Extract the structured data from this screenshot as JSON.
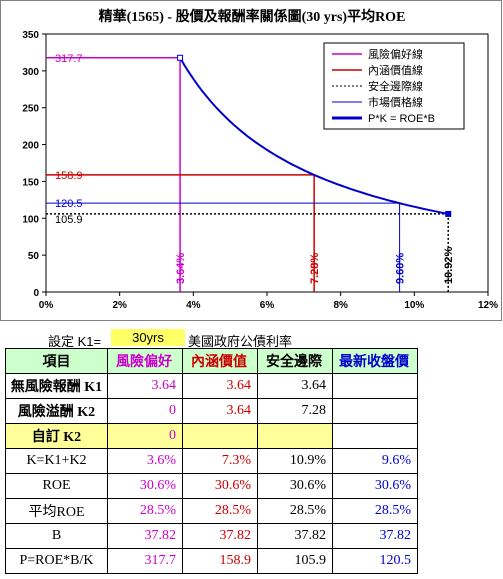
{
  "chart_data": {
    "type": "line",
    "title": "精華(1565) - 股價及報酬率關係圖(30 yrs)平均ROE",
    "xlim": [
      0,
      12
    ],
    "ylim": [
      0,
      350
    ],
    "x_ticks": [
      "0%",
      "2%",
      "4%",
      "6%",
      "8%",
      "10%",
      "12%"
    ],
    "y_ticks": [
      "0",
      "50",
      "100",
      "150",
      "200",
      "250",
      "300",
      "350"
    ],
    "legend_position": "top-right",
    "legend": [
      "風險偏好線",
      "內涵價值線",
      "安全邊際線",
      "市場價格線",
      "P*K = ROE*B"
    ],
    "series": [
      {
        "name": "風險偏好線",
        "color": "#cc00cc",
        "k": 3.64,
        "price": 317.7,
        "k_label": "3.64%",
        "price_label": "317.7"
      },
      {
        "name": "內涵價值線",
        "color": "#cc0000",
        "k": 7.28,
        "price": 158.9,
        "k_label": "7.28%",
        "price_label": "158.9"
      },
      {
        "name": "安全邊際線",
        "color": "#000000",
        "k": 10.92,
        "price": 105.9,
        "k_label": "10.92%",
        "price_label": "105.9"
      },
      {
        "name": "市場價格線",
        "color": "#0000cc",
        "k": 9.6,
        "price": 120.5,
        "k_label": "9.60%",
        "price_label": "120.5"
      }
    ],
    "curve": {
      "name": "P*K = ROE*B",
      "color": "#0000cc",
      "roe_b": 1156.5,
      "x_from": 3.64,
      "x_to": 10.92
    }
  },
  "setting": {
    "label": "設定 K1=",
    "value": "30yrs",
    "note": "美國政府公債利率"
  },
  "table": {
    "headers": [
      "項目",
      "風險偏好",
      "內涵價值",
      "安全邊際",
      "最新收盤價"
    ],
    "rows": [
      {
        "label": "無風險報酬 K1",
        "cells": [
          "3.64",
          "3.64",
          "3.64",
          ""
        ]
      },
      {
        "label": "風險溢酬 K2",
        "cells": [
          "0",
          "3.64",
          "7.28",
          ""
        ]
      },
      {
        "label": "自訂 K2",
        "cells": [
          "0",
          "",
          "",
          ""
        ]
      },
      {
        "label": "K=K1+K2",
        "cells": [
          "3.6%",
          "7.3%",
          "10.9%",
          "9.6%"
        ]
      },
      {
        "label": "ROE",
        "cells": [
          "30.6%",
          "30.6%",
          "30.6%",
          "30.6%"
        ]
      },
      {
        "label": "平均ROE",
        "cells": [
          "28.5%",
          "28.5%",
          "28.5%",
          "28.5%"
        ]
      },
      {
        "label": "B",
        "cells": [
          "37.82",
          "37.82",
          "37.82",
          "37.82"
        ]
      },
      {
        "label": "P=ROE*B/K",
        "cells": [
          "317.7",
          "158.9",
          "105.9",
          "120.5"
        ]
      }
    ]
  }
}
